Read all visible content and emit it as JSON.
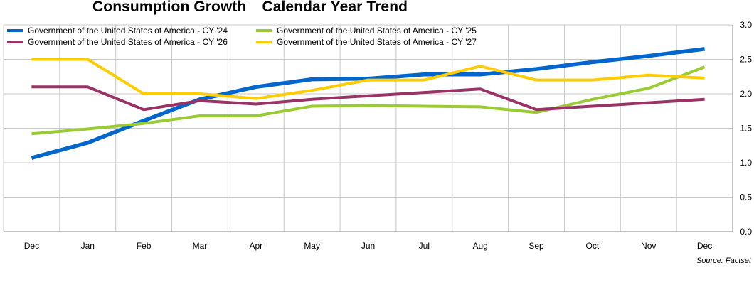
{
  "chart_data": {
    "type": "line",
    "title": "Consumption Growth",
    "subtitle": "Calendar Year Trend",
    "categories": [
      "Dec",
      "Jan",
      "Feb",
      "Mar",
      "Apr",
      "May",
      "Jun",
      "Jul",
      "Aug",
      "Sep",
      "Oct",
      "Nov",
      "Dec"
    ],
    "ylim": [
      0,
      3.0
    ],
    "yticks": [
      "0.0",
      "0.5",
      "1.0",
      "1.5",
      "2.0",
      "2.5",
      "3.0"
    ],
    "y_axis_side": "right",
    "grid": true,
    "legend_position": "top-left",
    "series": [
      {
        "name": "Government of the United States of America - CY '24",
        "color": "#0066CC",
        "values": [
          1.07,
          1.29,
          1.61,
          1.92,
          2.1,
          2.21,
          2.22,
          2.28,
          2.28,
          2.36,
          2.46,
          2.55,
          2.65
        ]
      },
      {
        "name": "Government of the United States of America - CY '25",
        "color": "#99CC33",
        "values": [
          1.42,
          1.49,
          1.57,
          1.68,
          1.68,
          1.82,
          1.83,
          1.82,
          1.81,
          1.73,
          1.92,
          2.08,
          2.39
        ]
      },
      {
        "name": "Government of the United States of America - CY '26",
        "color": "#993366",
        "values": [
          2.1,
          2.1,
          1.77,
          1.9,
          1.85,
          1.92,
          1.97,
          2.02,
          2.07,
          1.77,
          1.82,
          1.87,
          1.92
        ]
      },
      {
        "name": "Government of the United States of America - CY '27",
        "color": "#FFCC00",
        "values": [
          2.5,
          2.5,
          2.0,
          2.0,
          1.93,
          2.05,
          2.2,
          2.2,
          2.4,
          2.2,
          2.2,
          2.27,
          2.23
        ]
      }
    ],
    "source": "Source: Factset"
  }
}
